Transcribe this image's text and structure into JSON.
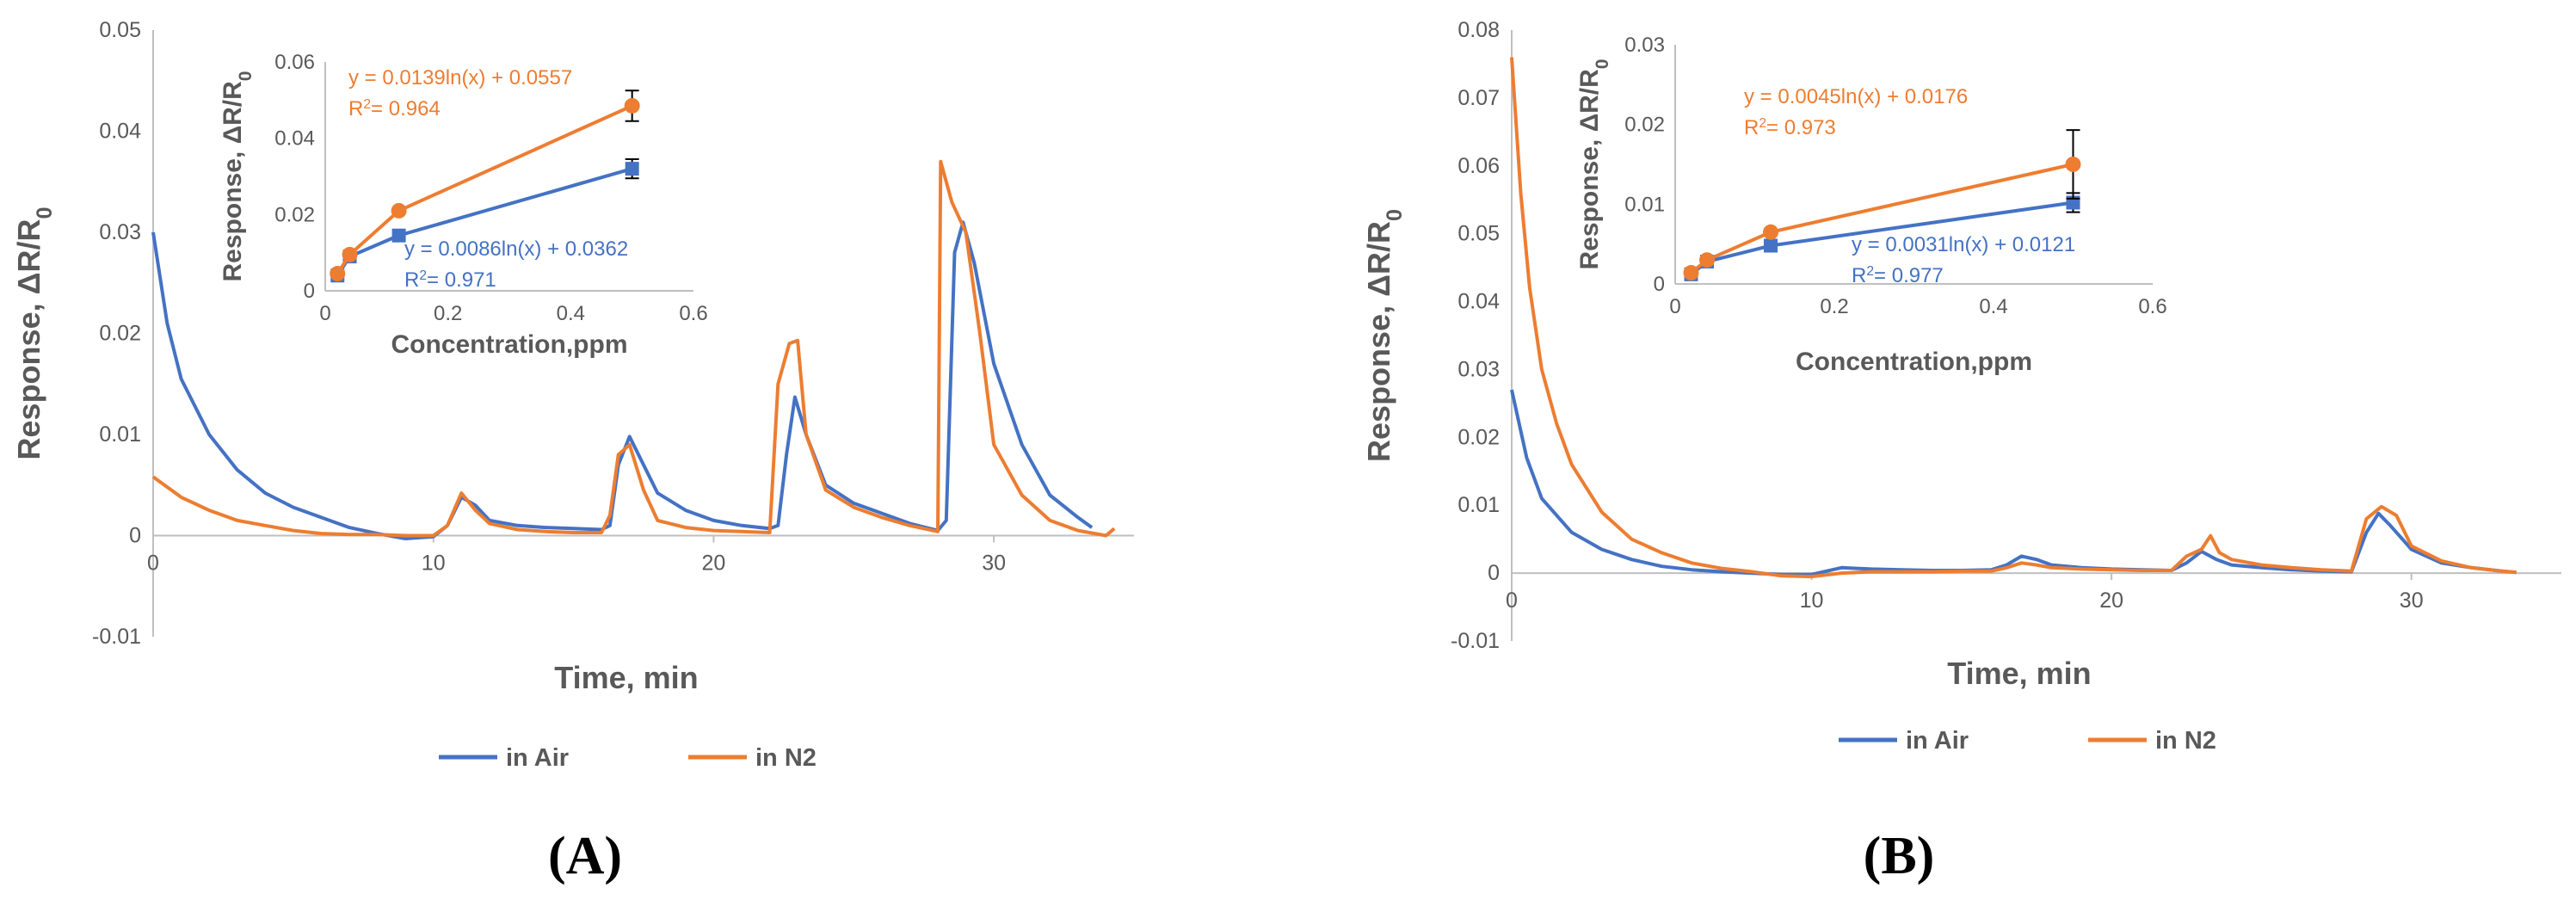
{
  "chart_data": [
    {
      "type": "line",
      "panel_label": "(A)",
      "xlabel": "Time, min",
      "ylabel": "Response, ΔR/R",
      "ylabel_sub": "0",
      "xlim": [
        0,
        35
      ],
      "ylim": [
        -0.01,
        0.05
      ],
      "xticks": [
        "0",
        "10",
        "20",
        "30"
      ],
      "xtick_values": [
        0,
        10,
        20,
        30
      ],
      "yticks": [
        "-0.01",
        "0",
        "0.01",
        "0.02",
        "0.03",
        "0.04",
        "0.05"
      ],
      "ytick_values": [
        -0.01,
        0,
        0.01,
        0.02,
        0.03,
        0.04,
        0.05
      ],
      "legend": [
        "in Air",
        "in N2"
      ],
      "colors": [
        "#4472C4",
        "#ED7D31"
      ],
      "series": [
        {
          "name": "in Air",
          "points": [
            [
              0,
              0.03
            ],
            [
              0.5,
              0.021
            ],
            [
              1,
              0.0155
            ],
            [
              2,
              0.01
            ],
            [
              3,
              0.0065
            ],
            [
              4,
              0.0042
            ],
            [
              5,
              0.0028
            ],
            [
              6,
              0.0018
            ],
            [
              7,
              0.0008
            ],
            [
              8,
              0.0002
            ],
            [
              9,
              -0.0003
            ],
            [
              10,
              -0.0001
            ],
            [
              10.5,
              0.001
            ],
            [
              11,
              0.0038
            ],
            [
              11.5,
              0.003
            ],
            [
              12,
              0.0015
            ],
            [
              13,
              0.001
            ],
            [
              14,
              0.0008
            ],
            [
              15,
              0.0007
            ],
            [
              16,
              0.0006
            ],
            [
              16.3,
              0.001
            ],
            [
              16.6,
              0.007
            ],
            [
              17,
              0.0098
            ],
            [
              17.5,
              0.007
            ],
            [
              18,
              0.0042
            ],
            [
              19,
              0.0025
            ],
            [
              20,
              0.0015
            ],
            [
              21,
              0.001
            ],
            [
              22,
              0.0007
            ],
            [
              22.3,
              0.001
            ],
            [
              22.6,
              0.008
            ],
            [
              22.9,
              0.0137
            ],
            [
              23.3,
              0.01
            ],
            [
              24,
              0.005
            ],
            [
              25,
              0.0032
            ],
            [
              26,
              0.0022
            ],
            [
              27,
              0.0012
            ],
            [
              28,
              0.0005
            ],
            [
              28.3,
              0.0015
            ],
            [
              28.6,
              0.028
            ],
            [
              28.9,
              0.031
            ],
            [
              29.3,
              0.027
            ],
            [
              30,
              0.017
            ],
            [
              31,
              0.009
            ],
            [
              32,
              0.004
            ],
            [
              33,
              0.0018
            ],
            [
              33.5,
              0.0008
            ]
          ]
        },
        {
          "name": "in N2",
          "points": [
            [
              0,
              0.0058
            ],
            [
              1,
              0.0038
            ],
            [
              2,
              0.0025
            ],
            [
              3,
              0.0015
            ],
            [
              4,
              0.001
            ],
            [
              5,
              0.0005
            ],
            [
              6,
              0.0002
            ],
            [
              7,
              0.0001
            ],
            [
              8,
              0.0001
            ],
            [
              9,
              0.0
            ],
            [
              10,
              0.0
            ],
            [
              10.5,
              0.001
            ],
            [
              11,
              0.0042
            ],
            [
              11.5,
              0.0025
            ],
            [
              12,
              0.0012
            ],
            [
              13,
              0.0006
            ],
            [
              14,
              0.0004
            ],
            [
              15,
              0.0003
            ],
            [
              16,
              0.0003
            ],
            [
              16.3,
              0.002
            ],
            [
              16.6,
              0.008
            ],
            [
              17,
              0.009
            ],
            [
              17.5,
              0.0045
            ],
            [
              18,
              0.0015
            ],
            [
              19,
              0.0008
            ],
            [
              20,
              0.0005
            ],
            [
              21,
              0.0004
            ],
            [
              22,
              0.0003
            ],
            [
              22.3,
              0.015
            ],
            [
              22.7,
              0.019
            ],
            [
              23,
              0.0193
            ],
            [
              23.3,
              0.01
            ],
            [
              24,
              0.0045
            ],
            [
              25,
              0.0028
            ],
            [
              26,
              0.0018
            ],
            [
              27,
              0.001
            ],
            [
              28,
              0.0004
            ],
            [
              28.1,
              0.037
            ],
            [
              28.5,
              0.033
            ],
            [
              29,
              0.03
            ],
            [
              29.5,
              0.02
            ],
            [
              30,
              0.009
            ],
            [
              31,
              0.004
            ],
            [
              32,
              0.0015
            ],
            [
              33,
              0.0005
            ],
            [
              34,
              0.0
            ],
            [
              34.3,
              0.0007
            ]
          ]
        }
      ],
      "inset": {
        "type": "scatter",
        "xlabel": "Concentration,ppm",
        "ylabel": "Response, ΔR/R",
        "ylabel_sub": "0",
        "xlim": [
          0,
          0.6
        ],
        "ylim": [
          0,
          0.06
        ],
        "xticks": [
          "0",
          "0.2",
          "0.4",
          "0.6"
        ],
        "xtick_values": [
          0,
          0.2,
          0.4,
          0.6
        ],
        "yticks": [
          "0",
          "0.02",
          "0.04",
          "0.06"
        ],
        "ytick_values": [
          0,
          0.02,
          0.04,
          0.06
        ],
        "series": [
          {
            "name": "in Air",
            "x": [
              0.02,
              0.04,
              0.12,
              0.5
            ],
            "y": [
              0.004,
              0.009,
              0.0145,
              0.032
            ],
            "err": [
              0,
              0,
              0,
              0.0025
            ]
          },
          {
            "name": "in N2",
            "x": [
              0.02,
              0.04,
              0.12,
              0.5
            ],
            "y": [
              0.0045,
              0.0095,
              0.021,
              0.0485
            ],
            "err": [
              0,
              0,
              0,
              0.004
            ]
          }
        ],
        "annotations": [
          {
            "series": "in N2",
            "equation": "y = 0.0139ln(x) + 0.0557",
            "r2_label": "R",
            "r2_sup": "2",
            "r2_value": "= 0.964"
          },
          {
            "series": "in Air",
            "equation": "y = 0.0086ln(x) + 0.0362",
            "r2_label": "R",
            "r2_sup": "2",
            "r2_value": "= 0.971"
          }
        ]
      }
    },
    {
      "type": "line",
      "panel_label": "(B)",
      "xlabel": "Time, min",
      "ylabel": "Response, ΔR/R",
      "ylabel_sub": "0",
      "xlim": [
        0,
        35
      ],
      "ylim": [
        -0.01,
        0.08
      ],
      "xticks": [
        "0",
        "10",
        "20",
        "30"
      ],
      "xtick_values": [
        0,
        10,
        20,
        30
      ],
      "yticks": [
        "-0.01",
        "0",
        "0.01",
        "0.02",
        "0.03",
        "0.04",
        "0.05",
        "0.06",
        "0.07",
        "0.08"
      ],
      "ytick_values": [
        -0.01,
        0,
        0.01,
        0.02,
        0.03,
        0.04,
        0.05,
        0.06,
        0.07,
        0.08
      ],
      "legend": [
        "in Air",
        "in N2"
      ],
      "colors": [
        "#4472C4",
        "#ED7D31"
      ],
      "series": [
        {
          "name": "in Air",
          "points": [
            [
              0,
              0.027
            ],
            [
              0.5,
              0.017
            ],
            [
              1,
              0.011
            ],
            [
              2,
              0.006
            ],
            [
              3,
              0.0035
            ],
            [
              4,
              0.002
            ],
            [
              5,
              0.001
            ],
            [
              6,
              0.0005
            ],
            [
              7,
              0.0002
            ],
            [
              8,
              0.0
            ],
            [
              9,
              -0.0002
            ],
            [
              10,
              -0.0002
            ],
            [
              11,
              0.0008
            ],
            [
              12,
              0.0006
            ],
            [
              13,
              0.0005
            ],
            [
              14,
              0.0004
            ],
            [
              15,
              0.0004
            ],
            [
              16,
              0.0005
            ],
            [
              16.5,
              0.0012
            ],
            [
              17,
              0.0025
            ],
            [
              17.5,
              0.002
            ],
            [
              18,
              0.0012
            ],
            [
              19,
              0.0008
            ],
            [
              20,
              0.0006
            ],
            [
              21,
              0.0005
            ],
            [
              22,
              0.0004
            ],
            [
              22.5,
              0.0015
            ],
            [
              23,
              0.0032
            ],
            [
              23.5,
              0.002
            ],
            [
              24,
              0.0012
            ],
            [
              25,
              0.0008
            ],
            [
              26,
              0.0005
            ],
            [
              27,
              0.0003
            ],
            [
              28,
              0.0002
            ],
            [
              28.5,
              0.006
            ],
            [
              28.9,
              0.0088
            ],
            [
              29.3,
              0.007
            ],
            [
              30,
              0.0035
            ],
            [
              31,
              0.0015
            ],
            [
              32,
              0.0008
            ],
            [
              33,
              0.0003
            ],
            [
              33.5,
              0.0001
            ]
          ]
        },
        {
          "name": "in N2",
          "points": [
            [
              0,
              0.076
            ],
            [
              0.3,
              0.056
            ],
            [
              0.6,
              0.042
            ],
            [
              1,
              0.03
            ],
            [
              1.5,
              0.022
            ],
            [
              2,
              0.016
            ],
            [
              3,
              0.009
            ],
            [
              4,
              0.005
            ],
            [
              5,
              0.003
            ],
            [
              6,
              0.0015
            ],
            [
              7,
              0.0007
            ],
            [
              8,
              0.0002
            ],
            [
              9,
              -0.0004
            ],
            [
              10,
              -0.0005
            ],
            [
              11,
              0.0
            ],
            [
              12,
              0.0002
            ],
            [
              13,
              0.0002
            ],
            [
              14,
              0.0002
            ],
            [
              15,
              0.0003
            ],
            [
              16,
              0.0003
            ],
            [
              16.5,
              0.0008
            ],
            [
              17,
              0.0015
            ],
            [
              17.5,
              0.0012
            ],
            [
              18,
              0.0008
            ],
            [
              19,
              0.0006
            ],
            [
              20,
              0.0005
            ],
            [
              21,
              0.0004
            ],
            [
              22,
              0.0004
            ],
            [
              22.5,
              0.0025
            ],
            [
              23,
              0.0035
            ],
            [
              23.3,
              0.0055
            ],
            [
              23.6,
              0.003
            ],
            [
              24,
              0.002
            ],
            [
              25,
              0.0012
            ],
            [
              26,
              0.0008
            ],
            [
              27,
              0.0005
            ],
            [
              28,
              0.0003
            ],
            [
              28.5,
              0.008
            ],
            [
              29,
              0.0098
            ],
            [
              29.5,
              0.0085
            ],
            [
              30,
              0.004
            ],
            [
              31,
              0.0018
            ],
            [
              32,
              0.0008
            ],
            [
              33,
              0.0003
            ],
            [
              33.5,
              0.0001
            ]
          ]
        }
      ],
      "inset": {
        "type": "scatter",
        "xlabel": "Concentration,ppm",
        "ylabel": "Response, ΔR/R",
        "ylabel_sub": "0",
        "xlim": [
          0,
          0.6
        ],
        "ylim": [
          0,
          0.03
        ],
        "xticks": [
          "0",
          "0.2",
          "0.4",
          "0.6"
        ],
        "xtick_values": [
          0,
          0.2,
          0.4,
          0.6
        ],
        "yticks": [
          "0",
          "0.01",
          "0.02",
          "0.03"
        ],
        "ytick_values": [
          0,
          0.01,
          0.02,
          0.03
        ],
        "series": [
          {
            "name": "in Air",
            "x": [
              0.02,
              0.04,
              0.12,
              0.5
            ],
            "y": [
              0.0012,
              0.0028,
              0.0048,
              0.0102
            ],
            "err": [
              0,
              0,
              0,
              0.0012
            ]
          },
          {
            "name": "in N2",
            "x": [
              0.02,
              0.04,
              0.12,
              0.5
            ],
            "y": [
              0.0014,
              0.003,
              0.0065,
              0.015
            ],
            "err": [
              0,
              0,
              0,
              0.0043
            ]
          }
        ],
        "annotations": [
          {
            "series": "in N2",
            "equation": "y = 0.0045ln(x) + 0.0176",
            "r2_label": "R",
            "r2_sup": "2",
            "r2_value": "= 0.973"
          },
          {
            "series": "in Air",
            "equation": "y = 0.0031ln(x) + 0.0121",
            "r2_label": "R",
            "r2_sup": "2",
            "r2_value": "= 0.977"
          }
        ]
      }
    }
  ]
}
